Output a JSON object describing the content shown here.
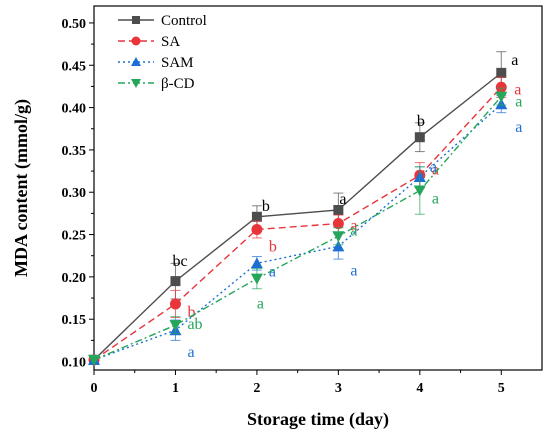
{
  "chart_data": {
    "type": "line",
    "xlabel": "Storage time (day)",
    "ylabel": "MDA content (mmol/g)",
    "xlim": [
      0,
      5.5
    ],
    "ylim": [
      0.09,
      0.52
    ],
    "x_ticks": [
      "0",
      "1",
      "2",
      "3",
      "4",
      "5"
    ],
    "y_ticks": [
      "0.10",
      "0.15",
      "0.20",
      "0.25",
      "0.30",
      "0.35",
      "0.40",
      "0.45",
      "0.50"
    ],
    "grid": false,
    "legend_position": "top-left",
    "x": [
      0,
      1,
      2,
      3,
      4,
      5
    ],
    "series": [
      {
        "name": "Control",
        "color": "#4d4d4d",
        "line_style": "solid",
        "marker": "square",
        "values": [
          0.102,
          0.195,
          0.271,
          0.279,
          0.365,
          0.441
        ],
        "errors": [
          0.0,
          0.021,
          0.013,
          0.02,
          0.017,
          0.025
        ],
        "labels": [
          "",
          "bc",
          "b",
          "a",
          "b",
          "a"
        ]
      },
      {
        "name": "SA",
        "color": "#e8343a",
        "line_style": "dashed",
        "marker": "circle",
        "values": [
          0.102,
          0.168,
          0.256,
          0.263,
          0.32,
          0.424
        ],
        "errors": [
          0.0,
          0.016,
          0.01,
          0.01,
          0.015,
          0.012
        ],
        "labels": [
          "",
          "b",
          "b",
          "a",
          "a",
          "a"
        ]
      },
      {
        "name": "SAM",
        "color": "#1d6fd6",
        "line_style": "dotted",
        "marker": "triangle-up",
        "values": [
          0.102,
          0.137,
          0.216,
          0.236,
          0.318,
          0.404
        ],
        "errors": [
          0.0,
          0.012,
          0.008,
          0.015,
          0.012,
          0.01
        ],
        "labels": [
          "",
          "a",
          "a",
          "a",
          "a",
          "a"
        ]
      },
      {
        "name": "β-CD",
        "color": "#26a65b",
        "line_style": "dashdot",
        "marker": "triangle-down",
        "values": [
          0.102,
          0.143,
          0.198,
          0.248,
          0.302,
          0.413
        ],
        "errors": [
          0.0,
          0.01,
          0.012,
          0.01,
          0.028,
          0.01
        ],
        "labels": [
          "",
          "ab",
          "a",
          "a",
          "a",
          "a"
        ]
      }
    ]
  }
}
